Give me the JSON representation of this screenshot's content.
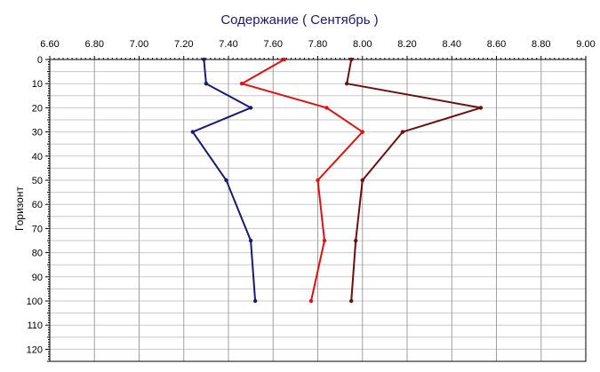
{
  "chart_data": {
    "type": "line",
    "title": "Содержание    ( Сентябрь )",
    "xlabel": "",
    "ylabel": "Горизонт",
    "xlim": [
      6.6,
      9.0
    ],
    "ylim": [
      0,
      125
    ],
    "x_axis_position": "top",
    "y_axis_inverted": true,
    "grid": true,
    "x_ticks": [
      "6.60",
      "6.80",
      "7.00",
      "7.20",
      "7.40",
      "7.60",
      "7.80",
      "8.00",
      "8.20",
      "8.40",
      "8.60",
      "8.80",
      "9.00"
    ],
    "y_ticks": [
      "0",
      "10",
      "20",
      "30",
      "40",
      "50",
      "60",
      "70",
      "80",
      "90",
      "100",
      "110",
      "120"
    ],
    "series": [
      {
        "color": "#1a1a6e",
        "points": [
          [
            7.29,
            0
          ],
          [
            7.3,
            10
          ],
          [
            7.5,
            20
          ],
          [
            7.24,
            30
          ],
          [
            7.39,
            50
          ],
          [
            7.5,
            75
          ],
          [
            7.52,
            100
          ]
        ]
      },
      {
        "color": "#e01010",
        "points": [
          [
            7.65,
            0
          ],
          [
            7.46,
            10
          ],
          [
            7.84,
            20
          ],
          [
            8.0,
            30
          ],
          [
            7.8,
            50
          ],
          [
            7.83,
            75
          ],
          [
            7.77,
            100
          ]
        ]
      },
      {
        "color": "#6b0f0f",
        "points": [
          [
            7.95,
            0
          ],
          [
            7.93,
            10
          ],
          [
            8.53,
            20
          ],
          [
            8.18,
            30
          ],
          [
            8.0,
            50
          ],
          [
            7.97,
            75
          ],
          [
            7.95,
            100
          ]
        ]
      }
    ]
  }
}
